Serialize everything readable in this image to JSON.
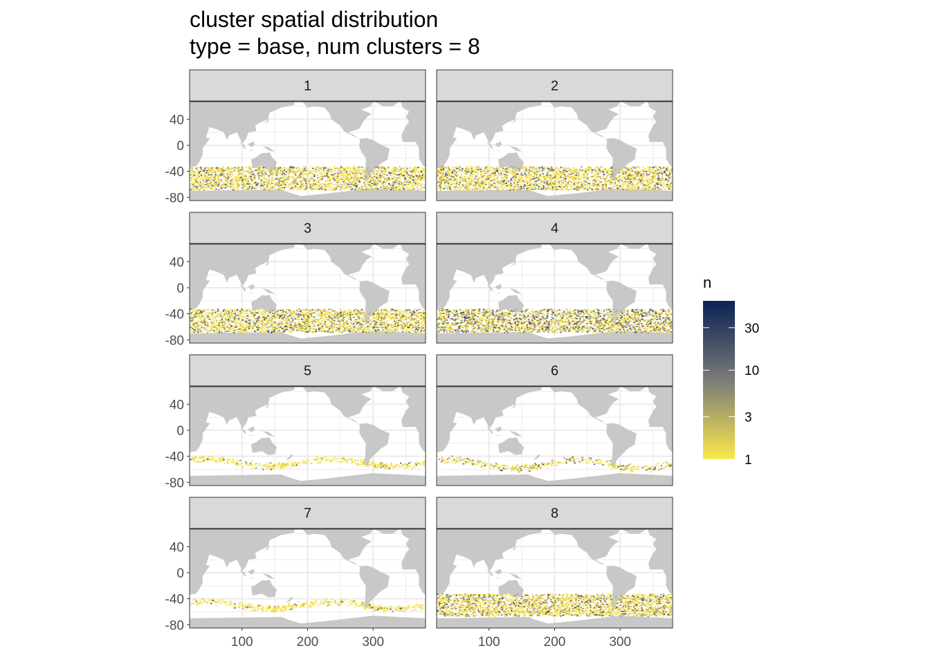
{
  "chart_data": {
    "type": "heatmap",
    "title": "cluster spatial distribution",
    "subtitle": "type = base, num clusters = 8",
    "xlabel": "",
    "ylabel": "",
    "x_ticks": [
      100,
      200,
      300
    ],
    "y_ticks": [
      40,
      0,
      -40,
      -80
    ],
    "xlim": [
      20,
      380
    ],
    "ylim": [
      -85,
      67
    ],
    "grid": true,
    "legend": {
      "title": "n",
      "position": "right",
      "scale": "log",
      "range": [
        1,
        60
      ],
      "ticks": [
        30,
        10,
        3,
        1
      ],
      "colors": [
        "#FBE84B",
        "#7B7B78",
        "#0A2254"
      ]
    },
    "land_color": "#C8C8C8",
    "panels": [
      {
        "label": "1",
        "lat_band": [
          -68,
          -32
        ],
        "sparse": false,
        "intensity": 0.3
      },
      {
        "label": "2",
        "lat_band": [
          -68,
          -32
        ],
        "sparse": false,
        "intensity": 0.32
      },
      {
        "label": "3",
        "lat_band": [
          -68,
          -32
        ],
        "sparse": false,
        "intensity": 0.34
      },
      {
        "label": "4",
        "lat_band": [
          -68,
          -32
        ],
        "sparse": false,
        "intensity": 0.5
      },
      {
        "label": "5",
        "lat_band": [
          -58,
          -36
        ],
        "sparse": true,
        "intensity": 0.1
      },
      {
        "label": "6",
        "lat_band": [
          -62,
          -36
        ],
        "sparse": true,
        "intensity": 0.25
      },
      {
        "label": "7",
        "lat_band": [
          -58,
          -36
        ],
        "sparse": true,
        "intensity": 0.08
      },
      {
        "label": "8",
        "lat_band": [
          -66,
          -32
        ],
        "sparse": false,
        "intensity": 0.32
      }
    ]
  }
}
